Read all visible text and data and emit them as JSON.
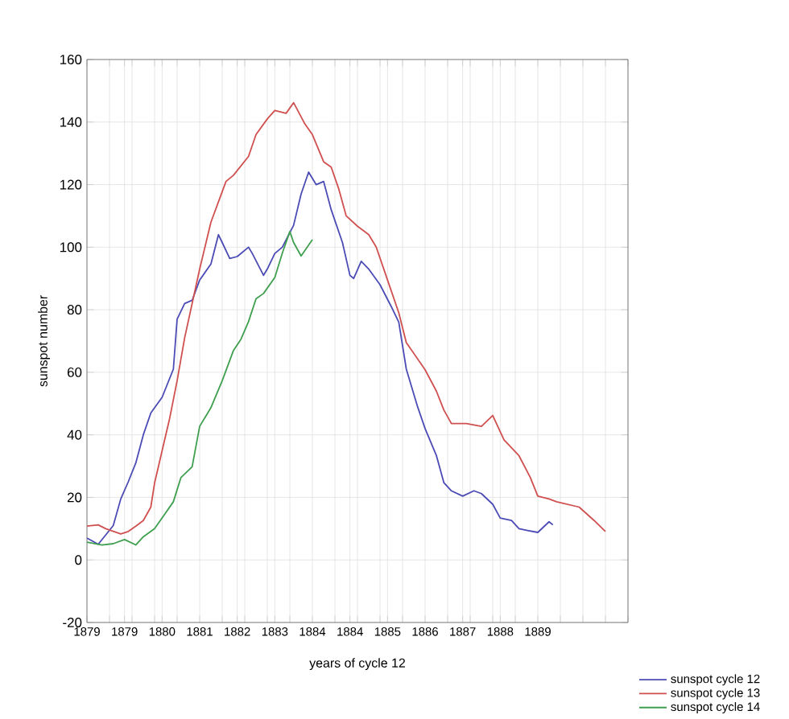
{
  "chart_data": {
    "type": "line",
    "xlabel": "years of cycle 12",
    "ylabel": "sunspot number",
    "xlim": [
      "1879-01",
      "1891-01"
    ],
    "ylim": [
      -20,
      160
    ],
    "yticks": [
      -20,
      0,
      20,
      40,
      60,
      80,
      100,
      120,
      140,
      160
    ],
    "xticks": [
      {
        "value": "1879-01",
        "label": "1879"
      },
      {
        "value": "1879-07",
        "label": null
      },
      {
        "value": "1879-11",
        "label": "1879"
      },
      {
        "value": "1880-01",
        "label": null
      },
      {
        "value": "1880-07",
        "label": null
      },
      {
        "value": "1880-09",
        "label": "1880"
      },
      {
        "value": "1881-01",
        "label": null
      },
      {
        "value": "1881-07",
        "label": "1881"
      },
      {
        "value": "1882-01",
        "label": null
      },
      {
        "value": "1882-05",
        "label": "1882"
      },
      {
        "value": "1882-07",
        "label": null
      },
      {
        "value": "1883-01",
        "label": null
      },
      {
        "value": "1883-03",
        "label": "1883"
      },
      {
        "value": "1883-07",
        "label": null
      },
      {
        "value": "1884-01",
        "label": "1884"
      },
      {
        "value": "1884-07",
        "label": null
      },
      {
        "value": "1884-11",
        "label": "1884"
      },
      {
        "value": "1885-01",
        "label": null
      },
      {
        "value": "1885-07",
        "label": null
      },
      {
        "value": "1885-09",
        "label": "1885"
      },
      {
        "value": "1886-01",
        "label": null
      },
      {
        "value": "1886-07",
        "label": "1886"
      },
      {
        "value": "1887-01",
        "label": null
      },
      {
        "value": "1887-05",
        "label": "1887"
      },
      {
        "value": "1887-07",
        "label": null
      },
      {
        "value": "1888-01",
        "label": null
      },
      {
        "value": "1888-03",
        "label": "1888"
      },
      {
        "value": "1888-07",
        "label": null
      },
      {
        "value": "1889-01",
        "label": "1889"
      },
      {
        "value": "1889-07",
        "label": null
      },
      {
        "value": "1890-01",
        "label": null
      },
      {
        "value": "1890-07",
        "label": null
      },
      {
        "value": "1891-01",
        "label": null
      }
    ],
    "grid": true,
    "legend": "bottom right",
    "marker": "none",
    "line_style": "solid",
    "series": [
      {
        "name": "sunspot cycle 12",
        "color": "#4b4bb5",
        "x": [
          "1879-01",
          "1879-04",
          "1879-08",
          "1879-10",
          "1879-12",
          "1880-02",
          "1880-04",
          "1880-06",
          "1880-09",
          "1880-12",
          "1881-01",
          "1881-03",
          "1881-05",
          "1881-07",
          "1881-10",
          "1881-12",
          "1882-01",
          "1882-03",
          "1882-05",
          "1882-08",
          "1882-09",
          "1882-12",
          "1883-01",
          "1883-03",
          "1883-05",
          "1883-08",
          "1883-10",
          "1883-12",
          "1884-02",
          "1884-04",
          "1884-06",
          "1884-09",
          "1884-11",
          "1884-12",
          "1885-02",
          "1885-04",
          "1885-07",
          "1885-10",
          "1885-12",
          "1886-02",
          "1886-05",
          "1886-07",
          "1886-10",
          "1886-12",
          "1887-02",
          "1887-05",
          "1887-08",
          "1887-10",
          "1888-01",
          "1888-03",
          "1888-06",
          "1888-08",
          "1888-10",
          "1889-01",
          "1889-04",
          "1889-05"
        ],
        "values": [
          7,
          5,
          11,
          19.5,
          25,
          31,
          40,
          47,
          52,
          61,
          77,
          82,
          83,
          89.5,
          94.6,
          104,
          101.5,
          96.4,
          97,
          100,
          98,
          91,
          93,
          98,
          100,
          107,
          117,
          124,
          120,
          121,
          112,
          101.5,
          91,
          90,
          95.5,
          93,
          88,
          81,
          76,
          61,
          49,
          42,
          33.4,
          24.7,
          22.1,
          20.4,
          22.1,
          21.2,
          17.8,
          13.4,
          12.6,
          10,
          9.5,
          8.8,
          12.2,
          11.2
        ]
      },
      {
        "name": "sunspot cycle 13",
        "color": "#d05050",
        "x": [
          "1879-01",
          "1879-04",
          "1879-06",
          "1879-10",
          "1879-12",
          "1880-02",
          "1880-04",
          "1880-06",
          "1880-07",
          "1880-09",
          "1880-11",
          "1881-01",
          "1881-03",
          "1881-07",
          "1881-10",
          "1882-02",
          "1882-04",
          "1882-08",
          "1882-10",
          "1883-01",
          "1883-03",
          "1883-06",
          "1883-08",
          "1883-11",
          "1884-01",
          "1884-04",
          "1884-06",
          "1884-08",
          "1884-10",
          "1885-01",
          "1885-04",
          "1885-06",
          "1885-09",
          "1885-12",
          "1886-02",
          "1886-07",
          "1886-10",
          "1886-12",
          "1887-02",
          "1887-04",
          "1887-06",
          "1887-10",
          "1888-01",
          "1888-04",
          "1888-08",
          "1888-11",
          "1889-01",
          "1889-04",
          "1889-06",
          "1889-12",
          "1890-04",
          "1890-07"
        ],
        "values": [
          10.8,
          11.2,
          10,
          8.3,
          9.1,
          10.8,
          12.6,
          16.9,
          24.6,
          34.9,
          45.2,
          57.3,
          71,
          93,
          108,
          121,
          123,
          129,
          136,
          141,
          143.7,
          142.8,
          146.2,
          139.4,
          136,
          127.3,
          125.6,
          118.7,
          110,
          106.7,
          104,
          100,
          89.5,
          79,
          69.5,
          60.8,
          54,
          47.9,
          43.6,
          43.6,
          43.6,
          42.7,
          46.2,
          38.4,
          33.3,
          26.4,
          20.4,
          19.5,
          18.6,
          16.9,
          12.6,
          9.1
        ]
      },
      {
        "name": "sunspot cycle 14",
        "color": "#3f9f4f",
        "x": [
          "1879-01",
          "1879-05",
          "1879-08",
          "1879-11",
          "1880-02",
          "1880-04",
          "1880-07",
          "1880-09",
          "1880-12",
          "1881-02",
          "1881-05",
          "1881-07",
          "1881-10",
          "1882-01",
          "1882-04",
          "1882-06",
          "1882-08",
          "1882-10",
          "1882-12",
          "1883-03",
          "1883-05",
          "1883-07",
          "1883-08",
          "1883-10",
          "1884-01"
        ],
        "values": [
          5.7,
          4.8,
          5.2,
          6.5,
          4.8,
          7.4,
          10,
          13.4,
          18.6,
          26.3,
          29.8,
          42.7,
          48.7,
          57.3,
          67,
          70.6,
          76.2,
          83.5,
          85.2,
          90.3,
          98.1,
          105,
          101.5,
          97.2,
          102.4
        ]
      }
    ]
  }
}
